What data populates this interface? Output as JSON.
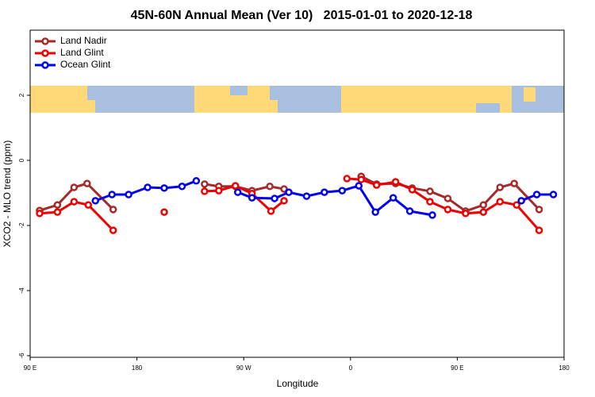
{
  "chart_data": {
    "type": "line",
    "title": "45N-60N Annual Mean (Ver 10)   2015-01-01 to 2020-12-18",
    "x_label": "Longitude",
    "y_label": "XCO2 - MLO trend (ppm)",
    "xlim": [
      90,
      540
    ],
    "xticks": [
      {
        "value": 90,
        "label": "90 E"
      },
      {
        "value": 180,
        "label": "180"
      },
      {
        "value": 270,
        "label": "90 W"
      },
      {
        "value": 360,
        "label": "0"
      },
      {
        "value": 450,
        "label": "90 E"
      },
      {
        "value": 540,
        "label": "180"
      }
    ],
    "ylim": [
      -6.05,
      4
    ],
    "yticks": [
      -6,
      -4,
      -2,
      0,
      2
    ],
    "legend": "upper left",
    "series": [
      {
        "name": "Land Nadir",
        "color": "#a52a2a",
        "x": [
          98,
          113,
          127,
          138,
          160,
          null,
          237,
          249,
          263,
          277,
          292,
          304,
          null,
          369,
          382,
          398,
          412,
          427,
          442,
          457,
          472,
          486,
          498,
          519
        ],
        "values": [
          -1.54,
          -1.37,
          -0.83,
          -0.71,
          -1.51,
          null,
          -0.73,
          -0.8,
          -0.8,
          -0.93,
          -0.8,
          -0.88,
          null,
          -0.49,
          -0.73,
          -0.71,
          -0.85,
          -0.95,
          -1.17,
          -1.56,
          -1.37,
          -0.83,
          -0.71,
          -1.51
        ]
      },
      {
        "name": "Land Glint",
        "color": "#ee0000",
        "x": [
          98,
          113,
          127,
          139,
          160,
          null,
          203,
          null,
          237,
          249,
          263,
          277,
          293,
          304,
          null,
          357,
          369,
          382,
          398,
          412,
          427,
          442,
          457,
          472,
          486,
          500,
          519
        ],
        "values": [
          -1.63,
          -1.59,
          -1.27,
          -1.37,
          -2.15,
          null,
          -1.59,
          null,
          -0.95,
          -0.93,
          -0.78,
          -1.02,
          -1.56,
          -1.24,
          null,
          -0.56,
          -0.59,
          -0.76,
          -0.66,
          -0.9,
          -1.27,
          -1.51,
          -1.63,
          -1.59,
          -1.27,
          -1.37,
          -2.15
        ]
      },
      {
        "name": "Ocean Glint",
        "color": "#0000ee",
        "x": [
          145,
          159,
          173,
          189,
          203,
          218,
          230,
          null,
          265,
          277,
          296,
          308,
          323,
          338,
          353,
          367,
          381,
          396,
          410,
          429,
          null,
          504,
          517,
          531
        ],
        "values": [
          -1.24,
          -1.05,
          -1.05,
          -0.83,
          -0.85,
          -0.8,
          -0.63,
          null,
          -0.98,
          -1.15,
          -1.17,
          -0.98,
          -1.1,
          -0.98,
          -0.93,
          -0.78,
          -1.59,
          -1.15,
          -1.56,
          -1.68,
          null,
          -1.24,
          -1.05,
          -1.05
        ]
      }
    ]
  }
}
